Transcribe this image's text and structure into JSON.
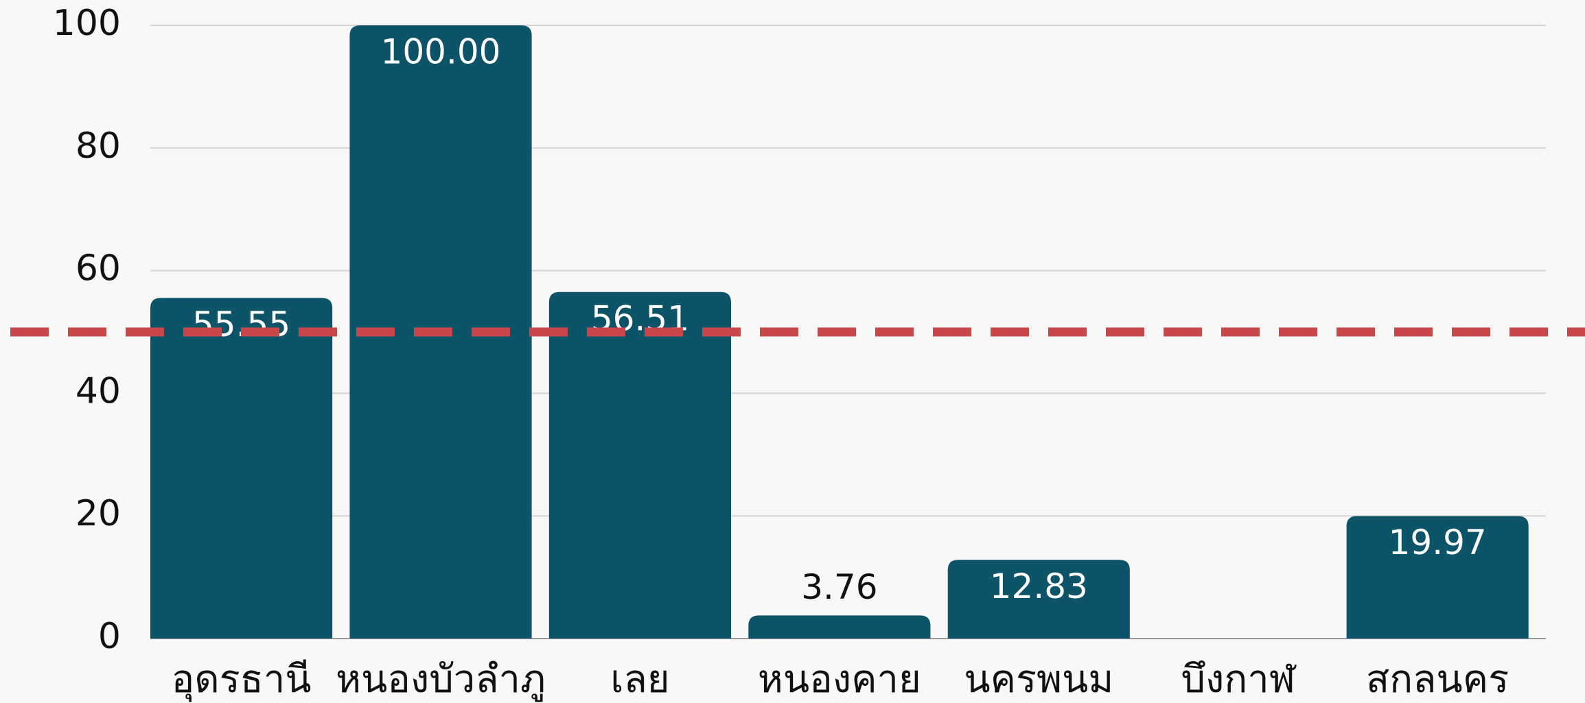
{
  "chart_data": {
    "type": "bar",
    "categories": [
      "อุดรธานี",
      "หนองบัวลำภู",
      "เลย",
      "หนองคาย",
      "นครพนม",
      "บึงกาฬ",
      "สกลนคร"
    ],
    "values": [
      55.55,
      100,
      56.51,
      3.76,
      12.83,
      0,
      19.97
    ],
    "value_labels": [
      "55.55",
      "100.00",
      "56.51",
      "3.76",
      "12.83",
      null,
      "19.97"
    ],
    "color": "#0d5469",
    "ylim": [
      0,
      100
    ],
    "yticks": [
      0,
      20,
      40,
      60,
      80,
      100
    ],
    "grid": true,
    "reference_line": {
      "value": 50,
      "color": "#c9474a"
    }
  }
}
